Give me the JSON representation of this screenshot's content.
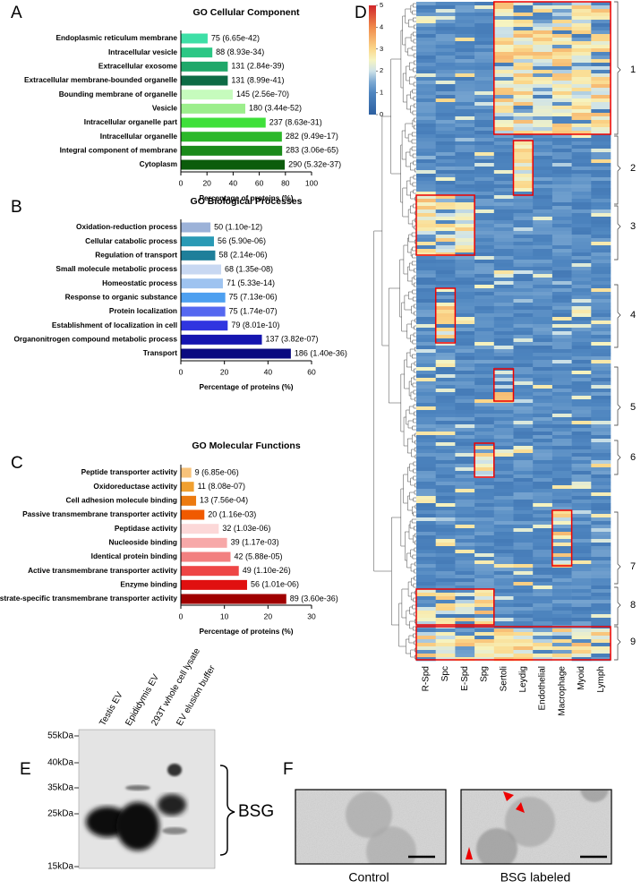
{
  "chart_data": [
    {
      "type": "bar",
      "orientation": "horizontal",
      "title": "GO Cellular Component",
      "categories": [
        "Endoplasmic reticulum membrane",
        "Intracellular vesicle",
        "Extracellular exosome",
        "Extracellular membrane-bounded organelle",
        "Bounding membrane of organelle",
        "Vesicle",
        "Intracellular organelle part",
        "Intracellular organelle",
        "Integral component of membrane",
        "Cytoplasm"
      ],
      "values": [
        20.5,
        24.1,
        35.9,
        35.9,
        39.7,
        49.3,
        64.9,
        77.3,
        77.5,
        79.5
      ],
      "bar_labels": [
        "75 (6.65e-42)",
        "88 (8.93e-34)",
        "131 (2.84e-39)",
        "131 (8.99e-41)",
        "145 (2.56e-70)",
        "180 (3.44e-52)",
        "237 (8.63e-31)",
        "282 (9.49e-17)",
        "283 (3.06e-65)",
        "290 (5.32e-37)"
      ],
      "colors": [
        "#3ddfa6",
        "#2cc785",
        "#1fa86a",
        "#0d6b45",
        "#c6fbbd",
        "#9cee8c",
        "#3fe03a",
        "#2cb82a",
        "#1a8a1a",
        "#0c5c0c"
      ],
      "xlim": [
        0,
        100
      ],
      "xticks": [
        0,
        20,
        40,
        60,
        80,
        100
      ],
      "xlabel": "Percentage of proteins (%)"
    },
    {
      "type": "bar",
      "orientation": "horizontal",
      "title": "GO Biological Processes",
      "categories": [
        "Oxidation-reduction process",
        "Cellular catabolic process",
        "Regulation of transport",
        "Small molecule metabolic process",
        "Homeostatic process",
        "Response to organic substance",
        "Protein localization",
        "Establishment of localization in cell",
        "Organonitrogen compound metabolic process",
        "Transport"
      ],
      "values": [
        13.6,
        15.2,
        15.8,
        18.5,
        19.3,
        20.4,
        20.4,
        21.5,
        37.2,
        50.5
      ],
      "bar_labels": [
        "50 (1.10e-12)",
        "56 (5.90e-06)",
        "58 (2.14e-06)",
        "68 (1.35e-08)",
        "71 (5.33e-14)",
        "75 (7.13e-06)",
        "75 (1.74e-07)",
        "79 (8.01e-10)",
        "137 (3.82e-07)",
        "186 (1.40e-36)"
      ],
      "colors": [
        "#9cb2d8",
        "#2a9ab5",
        "#1f7f9a",
        "#c8d8f2",
        "#9ec3f0",
        "#4ea0f0",
        "#5568f0",
        "#3035e0",
        "#1515b0",
        "#0a0a80"
      ],
      "xlim": [
        0,
        60
      ],
      "xticks": [
        0,
        20,
        40,
        60
      ],
      "xlabel": "Percentage of proteins (%)"
    },
    {
      "type": "bar",
      "orientation": "horizontal",
      "title": "GO Molecular Functions",
      "categories": [
        "Peptide transporter activity",
        "Oxidoreductase activity",
        "Cell adhesion molecule binding",
        "Passive transmembrane transporter activity",
        "Peptidase activity",
        "Nucleoside binding",
        "Identical protein binding",
        "Active transmembrane transporter activity",
        "Enzyme binding",
        "Substrate-specific transmembrane transporter activity"
      ],
      "values": [
        2.4,
        3.0,
        3.5,
        5.4,
        8.7,
        10.6,
        11.4,
        13.3,
        15.2,
        24.2
      ],
      "bar_labels": [
        "9 (6.85e-06)",
        "11 (8.08e-07)",
        "13 (7.56e-04)",
        "20 (1.16e-03)",
        "32 (1.03e-06)",
        "39 (1.17e-03)",
        "42 (5.88e-05)",
        "49 (1.10e-26)",
        "56 (1.01e-06)",
        "89 (3.60e-36)"
      ],
      "colors": [
        "#f7c27a",
        "#f0a030",
        "#ec7a10",
        "#f05a00",
        "#fcd8d8",
        "#f7a8a8",
        "#f28080",
        "#ee4545",
        "#e01010",
        "#a00000"
      ],
      "xlim": [
        0,
        30
      ],
      "xticks": [
        0,
        10,
        20,
        30
      ],
      "xlabel": "Percentage of proteins (%)"
    },
    {
      "type": "heatmap",
      "columns": [
        "R-Spd",
        "Spc",
        "E-Spd",
        "Spg",
        "Sertoli",
        "Leydig",
        "Endothelial",
        "Macrophage",
        "Myoid",
        "Lymph"
      ],
      "clusters": [
        "1",
        "2",
        "3",
        "4",
        "5",
        "6",
        "7",
        "8",
        "9"
      ],
      "colorbar_lim": [
        0,
        5
      ],
      "colorbar_ticks": [
        0,
        1,
        2,
        3,
        4,
        5
      ]
    }
  ],
  "panel_letters": [
    "A",
    "B",
    "C",
    "D",
    "E",
    "F"
  ],
  "western_blot": {
    "lanes": [
      "Testis EV",
      "Epididymis EV",
      "293T whole cell lysate",
      "EV elusion buffer"
    ],
    "markers": [
      "55kDa",
      "40kDa",
      "35kDa",
      "25kDa",
      "15kDa"
    ],
    "target": "BSG"
  },
  "micrographs": {
    "labels": [
      "Control",
      "BSG labeled"
    ]
  }
}
